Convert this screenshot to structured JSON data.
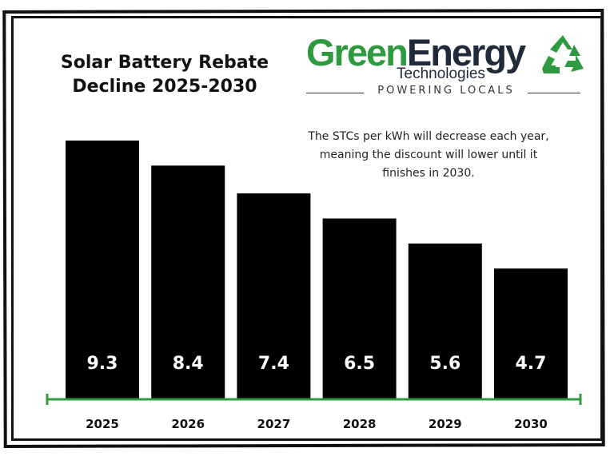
{
  "title_lines": [
    "Solar Battery Rebate",
    "Decline 2025-2030"
  ],
  "logo": {
    "green": "Green",
    "energy": "Energy",
    "sub": "Technologies",
    "tagline": "POWERING LOCALS",
    "icon": "recycle-icon",
    "green_color": "#2e9a3f",
    "dark_color": "#1f2a3a"
  },
  "note_lines": [
    "The STCs per kWh will decrease each year,",
    "meaning the discount will lower until it",
    "finishes in 2030."
  ],
  "chart_data": {
    "type": "bar",
    "categories": [
      "2025",
      "2026",
      "2027",
      "2028",
      "2029",
      "2030"
    ],
    "values": [
      9.3,
      8.4,
      7.4,
      6.5,
      5.6,
      4.7
    ],
    "value_labels": [
      "9.3",
      "8.4",
      "7.4",
      "6.5",
      "5.6",
      "4.7"
    ],
    "ylim": [
      0,
      9.3
    ],
    "bar_color": "#000000",
    "axis_color": "#2e9a3f",
    "label_color": "#ffffff",
    "grid": false,
    "legend": "none"
  }
}
